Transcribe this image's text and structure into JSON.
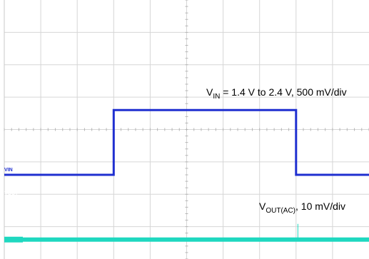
{
  "chart_data": {
    "type": "line",
    "grid": true,
    "divisions": {
      "x": 10,
      "y": 8
    },
    "time_divisions": [
      0,
      1,
      2,
      3,
      4,
      5,
      6,
      7,
      8,
      9,
      10
    ],
    "series": [
      {
        "name": "VIN",
        "color": "#1f2fd0",
        "scale_mV_per_div": 500,
        "baseline_div": 2.6,
        "x_div": [
          0,
          3.0,
          3.0,
          8.0,
          8.0,
          10.0
        ],
        "y_V": [
          1.4,
          1.4,
          2.4,
          2.4,
          1.4,
          1.4
        ]
      },
      {
        "name": "VOUT",
        "color": "#1fd8c0",
        "scale_mV_per_div": 10,
        "baseline_div": 0.6,
        "x_div": [
          0,
          10
        ],
        "y_mV": [
          0,
          0
        ]
      }
    ],
    "annotations": [
      {
        "id": "vin",
        "main": "V",
        "sub": "IN",
        "rest": " = 1.4 V to 2.4 V, 500 mV/div"
      },
      {
        "id": "vout",
        "main": "V",
        "sub": "OUT(AC)",
        "rest": ", 10 mV/div"
      }
    ],
    "channel_labels": [
      "VIN",
      "VOUT"
    ]
  }
}
